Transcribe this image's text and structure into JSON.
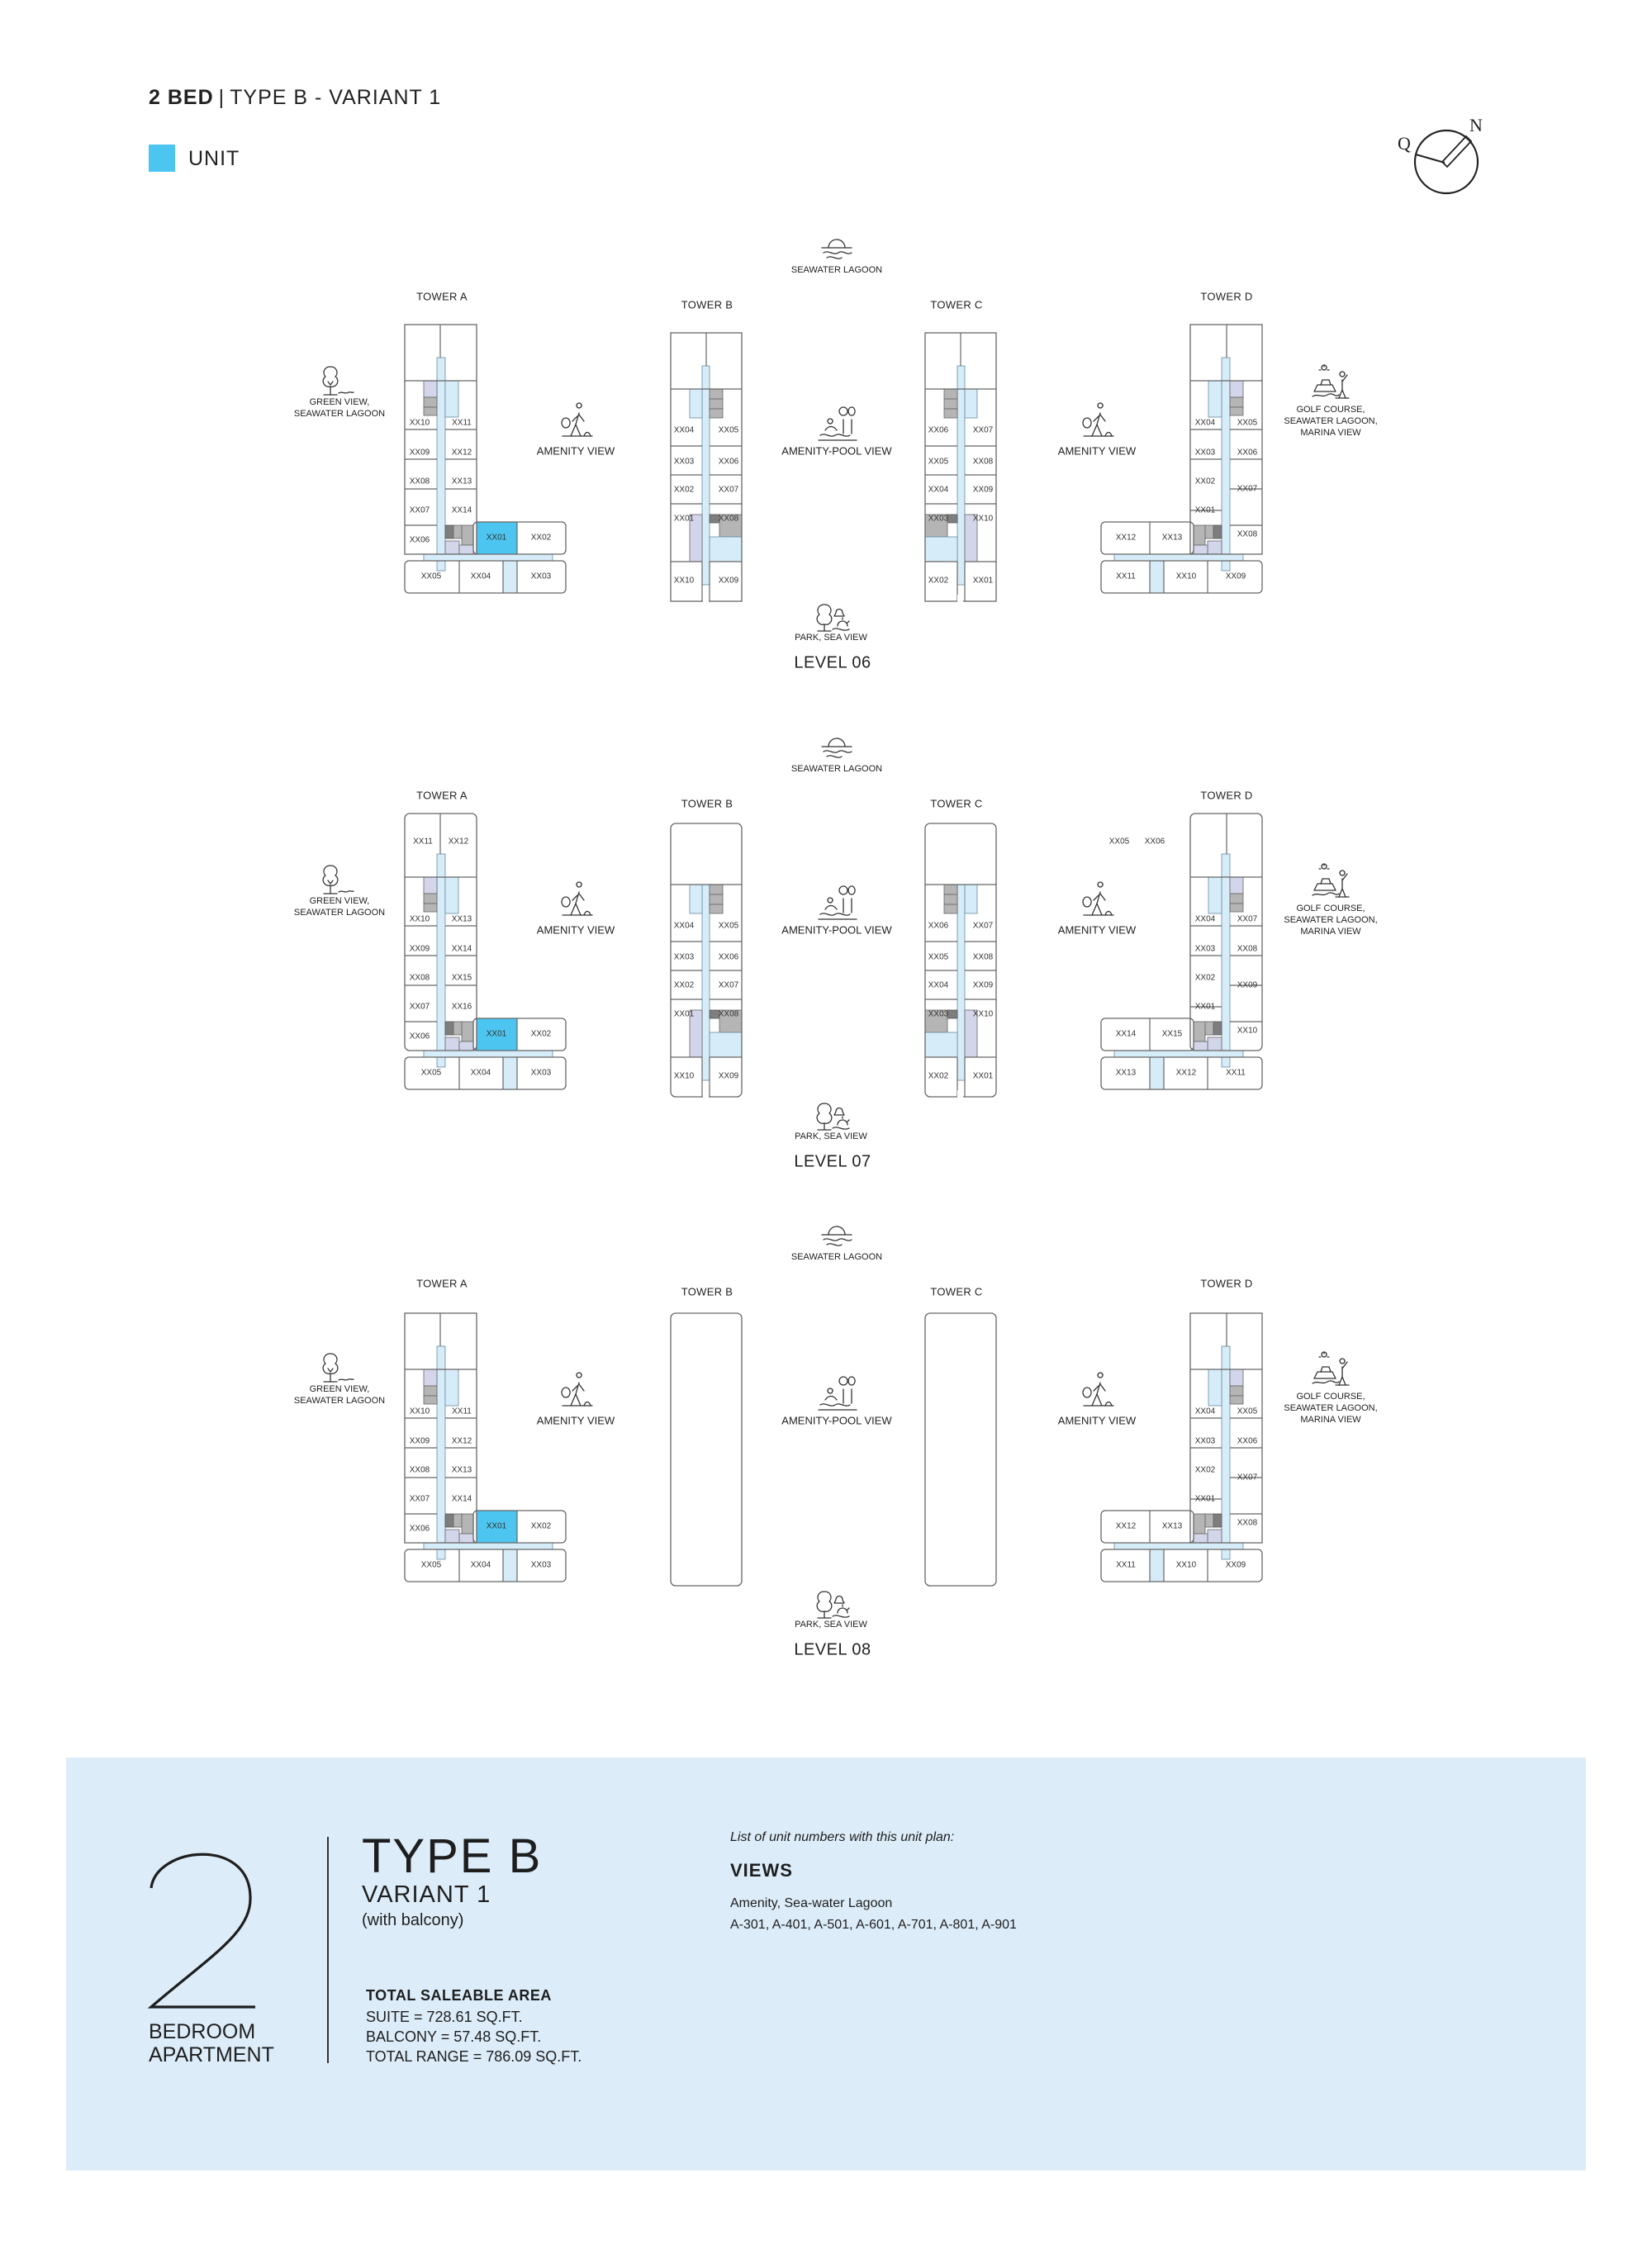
{
  "header": {
    "bed": "2 BED",
    "separator": "|",
    "type": "TYPE B - VARIANT 1"
  },
  "legend": {
    "label": "UNIT",
    "color": "#4cc6f0"
  },
  "compass": {
    "left_letter": "Q",
    "north_letter": "N"
  },
  "colors": {
    "unit_highlight": "#4cc6f0",
    "corridor": "#d6ecf8",
    "core": "#b5b5b5",
    "service": "#d3d6ea",
    "panel": "#dcedf9"
  },
  "levels": [
    {
      "label": "LEVEL 06",
      "views": {
        "top": "SEAWATER LAGOON",
        "left": [
          "GREEN VIEW,",
          "SEAWATER LAGOON"
        ],
        "amenity_left": "AMENITY VIEW",
        "amenity_pool": "AMENITY-POOL VIEW",
        "amenity_right": "AMENITY VIEW",
        "right": [
          "GOLF COURSE,",
          "SEAWATER LAGOON,",
          "MARINA VIEW"
        ],
        "bottom": "PARK, SEA VIEW"
      },
      "towers": [
        {
          "name": "TOWER A",
          "shape": "L",
          "outer": [
            "XX10",
            "XX09",
            "XX08",
            "XX07",
            "XX06"
          ],
          "inner": [
            "XX11",
            "XX12",
            "XX13",
            "XX14"
          ],
          "top": [],
          "wing": [
            "XX01",
            "XX02"
          ],
          "bottom": [
            "XX05",
            "XX04",
            "XX03"
          ],
          "highlight": "XX01"
        },
        {
          "name": "TOWER B",
          "shape": "straight",
          "left": [
            "XX04",
            "XX03",
            "XX02",
            "XX01",
            "XX10"
          ],
          "right": [
            "XX05",
            "XX06",
            "XX07",
            "XX08",
            "XX09"
          ]
        },
        {
          "name": "TOWER C",
          "shape": "straight",
          "left": [
            "XX06",
            "XX05",
            "XX04",
            "XX03",
            "XX02"
          ],
          "right": [
            "XX07",
            "XX08",
            "XX09",
            "XX10",
            "XX01"
          ]
        },
        {
          "name": "TOWER D",
          "shape": "L-mirror",
          "outer": [
            "XX05",
            "XX06",
            "XX07",
            "XX08"
          ],
          "inner": [
            "XX04",
            "XX03",
            "XX02",
            "XX01"
          ],
          "top": [],
          "wing": [
            "XX12",
            "XX13"
          ],
          "bottom": [
            "XX11",
            "XX10",
            "XX09"
          ]
        }
      ]
    },
    {
      "label": "LEVEL 07",
      "views": {
        "top": "SEAWATER LAGOON",
        "left": [
          "GREEN VIEW,",
          "SEAWATER LAGOON"
        ],
        "amenity_left": "AMENITY VIEW",
        "amenity_pool": "AMENITY-POOL VIEW",
        "amenity_right": "AMENITY VIEW",
        "right": [
          "GOLF COURSE,",
          "SEAWATER LAGOON,",
          "MARINA VIEW"
        ],
        "bottom": "PARK, SEA VIEW"
      },
      "towers": [
        {
          "name": "TOWER A",
          "shape": "L",
          "outer": [
            "XX10",
            "XX09",
            "XX08",
            "XX07",
            "XX06"
          ],
          "inner": [
            "XX13",
            "XX14",
            "XX15",
            "XX16"
          ],
          "top": [
            "XX11",
            "XX12"
          ],
          "wing": [
            "XX01",
            "XX02"
          ],
          "bottom": [
            "XX05",
            "XX04",
            "XX03"
          ],
          "highlight": "XX01"
        },
        {
          "name": "TOWER B",
          "shape": "straight",
          "left": [
            "XX04",
            "XX03",
            "XX02",
            "XX01",
            "XX10"
          ],
          "right": [
            "XX05",
            "XX06",
            "XX07",
            "XX08",
            "XX09"
          ]
        },
        {
          "name": "TOWER C",
          "shape": "straight",
          "left": [
            "XX06",
            "XX05",
            "XX04",
            "XX03",
            "XX02"
          ],
          "right": [
            "XX07",
            "XX08",
            "XX09",
            "XX10",
            "XX01"
          ]
        },
        {
          "name": "TOWER D",
          "shape": "L-mirror",
          "outer": [
            "XX07",
            "XX08",
            "XX09",
            "XX10"
          ],
          "inner": [
            "XX04",
            "XX03",
            "XX02",
            "XX01"
          ],
          "top": [
            "XX05",
            "XX06"
          ],
          "wing": [
            "XX14",
            "XX15"
          ],
          "bottom": [
            "XX13",
            "XX12",
            "XX11"
          ]
        }
      ]
    },
    {
      "label": "LEVEL 08",
      "views": {
        "top": "SEAWATER LAGOON",
        "left": [
          "GREEN VIEW,",
          "SEAWATER LAGOON"
        ],
        "amenity_left": "AMENITY VIEW",
        "amenity_pool": "AMENITY-POOL VIEW",
        "amenity_right": "AMENITY VIEW",
        "right": [
          "GOLF COURSE,",
          "SEAWATER LAGOON,",
          "MARINA VIEW"
        ],
        "bottom": "PARK, SEA VIEW"
      },
      "towers": [
        {
          "name": "TOWER A",
          "shape": "L",
          "outer": [
            "XX10",
            "XX09",
            "XX08",
            "XX07",
            "XX06"
          ],
          "inner": [
            "XX11",
            "XX12",
            "XX13",
            "XX14"
          ],
          "top": [],
          "wing": [
            "XX01",
            "XX02"
          ],
          "bottom": [
            "XX05",
            "XX04",
            "XX03"
          ],
          "highlight": "XX01"
        },
        {
          "name": "TOWER B",
          "shape": "empty"
        },
        {
          "name": "TOWER C",
          "shape": "empty"
        },
        {
          "name": "TOWER D",
          "shape": "L-mirror",
          "outer": [
            "XX05",
            "XX06",
            "XX07",
            "XX08"
          ],
          "inner": [
            "XX04",
            "XX03",
            "XX02",
            "XX01"
          ],
          "top": [],
          "wing": [
            "XX12",
            "XX13"
          ],
          "bottom": [
            "XX11",
            "XX10",
            "XX09"
          ]
        }
      ]
    }
  ],
  "summary": {
    "bedrooms": "2",
    "bedroom_line1": "BEDROOM",
    "bedroom_line2": "APARTMENT",
    "type": "TYPE B",
    "variant": "VARIANT 1",
    "note": "(with balcony)",
    "area_title": "TOTAL SALEABLE AREA",
    "suite": "SUITE = 728.61 SQ.FT.",
    "balcony": "BALCONY = 57.48 SQ.FT.",
    "total": "TOTAL RANGE = 786.09 SQ.FT.",
    "list_intro": "List of unit numbers with this unit plan:",
    "views_title": "VIEWS",
    "views_value": "Amenity, Sea-water Lagoon",
    "units": "A-301, A-401, A-501, A-601, A-701, A-801, A-901"
  }
}
